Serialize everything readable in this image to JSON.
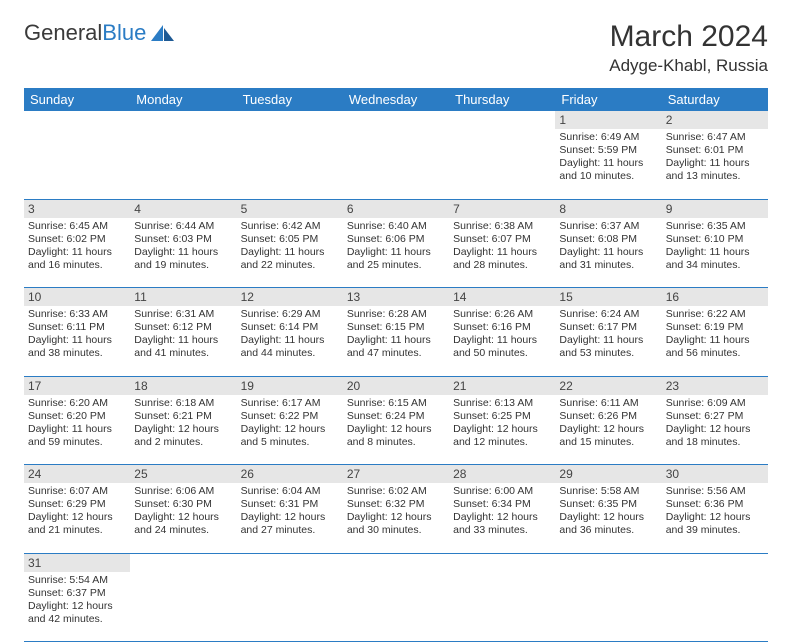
{
  "logo": {
    "general": "General",
    "blue": "Blue"
  },
  "title": "March 2024",
  "location": "Adyge-Khabl, Russia",
  "days_of_week": [
    "Sunday",
    "Monday",
    "Tuesday",
    "Wednesday",
    "Thursday",
    "Friday",
    "Saturday"
  ],
  "colors": {
    "header_bg": "#2b7cc4",
    "daynum_bg": "#e6e6e6",
    "rule": "#2b7cc4"
  },
  "weeks": [
    [
      null,
      null,
      null,
      null,
      null,
      {
        "n": "1",
        "sunrise": "6:49 AM",
        "sunset": "5:59 PM",
        "daylight": "11 hours and 10 minutes."
      },
      {
        "n": "2",
        "sunrise": "6:47 AM",
        "sunset": "6:01 PM",
        "daylight": "11 hours and 13 minutes."
      }
    ],
    [
      {
        "n": "3",
        "sunrise": "6:45 AM",
        "sunset": "6:02 PM",
        "daylight": "11 hours and 16 minutes."
      },
      {
        "n": "4",
        "sunrise": "6:44 AM",
        "sunset": "6:03 PM",
        "daylight": "11 hours and 19 minutes."
      },
      {
        "n": "5",
        "sunrise": "6:42 AM",
        "sunset": "6:05 PM",
        "daylight": "11 hours and 22 minutes."
      },
      {
        "n": "6",
        "sunrise": "6:40 AM",
        "sunset": "6:06 PM",
        "daylight": "11 hours and 25 minutes."
      },
      {
        "n": "7",
        "sunrise": "6:38 AM",
        "sunset": "6:07 PM",
        "daylight": "11 hours and 28 minutes."
      },
      {
        "n": "8",
        "sunrise": "6:37 AM",
        "sunset": "6:08 PM",
        "daylight": "11 hours and 31 minutes."
      },
      {
        "n": "9",
        "sunrise": "6:35 AM",
        "sunset": "6:10 PM",
        "daylight": "11 hours and 34 minutes."
      }
    ],
    [
      {
        "n": "10",
        "sunrise": "6:33 AM",
        "sunset": "6:11 PM",
        "daylight": "11 hours and 38 minutes."
      },
      {
        "n": "11",
        "sunrise": "6:31 AM",
        "sunset": "6:12 PM",
        "daylight": "11 hours and 41 minutes."
      },
      {
        "n": "12",
        "sunrise": "6:29 AM",
        "sunset": "6:14 PM",
        "daylight": "11 hours and 44 minutes."
      },
      {
        "n": "13",
        "sunrise": "6:28 AM",
        "sunset": "6:15 PM",
        "daylight": "11 hours and 47 minutes."
      },
      {
        "n": "14",
        "sunrise": "6:26 AM",
        "sunset": "6:16 PM",
        "daylight": "11 hours and 50 minutes."
      },
      {
        "n": "15",
        "sunrise": "6:24 AM",
        "sunset": "6:17 PM",
        "daylight": "11 hours and 53 minutes."
      },
      {
        "n": "16",
        "sunrise": "6:22 AM",
        "sunset": "6:19 PM",
        "daylight": "11 hours and 56 minutes."
      }
    ],
    [
      {
        "n": "17",
        "sunrise": "6:20 AM",
        "sunset": "6:20 PM",
        "daylight": "11 hours and 59 minutes."
      },
      {
        "n": "18",
        "sunrise": "6:18 AM",
        "sunset": "6:21 PM",
        "daylight": "12 hours and 2 minutes."
      },
      {
        "n": "19",
        "sunrise": "6:17 AM",
        "sunset": "6:22 PM",
        "daylight": "12 hours and 5 minutes."
      },
      {
        "n": "20",
        "sunrise": "6:15 AM",
        "sunset": "6:24 PM",
        "daylight": "12 hours and 8 minutes."
      },
      {
        "n": "21",
        "sunrise": "6:13 AM",
        "sunset": "6:25 PM",
        "daylight": "12 hours and 12 minutes."
      },
      {
        "n": "22",
        "sunrise": "6:11 AM",
        "sunset": "6:26 PM",
        "daylight": "12 hours and 15 minutes."
      },
      {
        "n": "23",
        "sunrise": "6:09 AM",
        "sunset": "6:27 PM",
        "daylight": "12 hours and 18 minutes."
      }
    ],
    [
      {
        "n": "24",
        "sunrise": "6:07 AM",
        "sunset": "6:29 PM",
        "daylight": "12 hours and 21 minutes."
      },
      {
        "n": "25",
        "sunrise": "6:06 AM",
        "sunset": "6:30 PM",
        "daylight": "12 hours and 24 minutes."
      },
      {
        "n": "26",
        "sunrise": "6:04 AM",
        "sunset": "6:31 PM",
        "daylight": "12 hours and 27 minutes."
      },
      {
        "n": "27",
        "sunrise": "6:02 AM",
        "sunset": "6:32 PM",
        "daylight": "12 hours and 30 minutes."
      },
      {
        "n": "28",
        "sunrise": "6:00 AM",
        "sunset": "6:34 PM",
        "daylight": "12 hours and 33 minutes."
      },
      {
        "n": "29",
        "sunrise": "5:58 AM",
        "sunset": "6:35 PM",
        "daylight": "12 hours and 36 minutes."
      },
      {
        "n": "30",
        "sunrise": "5:56 AM",
        "sunset": "6:36 PM",
        "daylight": "12 hours and 39 minutes."
      }
    ],
    [
      {
        "n": "31",
        "sunrise": "5:54 AM",
        "sunset": "6:37 PM",
        "daylight": "12 hours and 42 minutes."
      },
      null,
      null,
      null,
      null,
      null,
      null
    ]
  ]
}
